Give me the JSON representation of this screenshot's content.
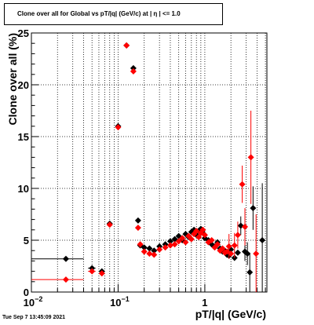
{
  "timestamp": "Tue Sep  7 13:45:09 2021",
  "chart_data": {
    "type": "scatter",
    "title": "Clone  over all for Global vs pT/|q| (GeV/c) at |  η  | <= 1.0",
    "xlabel": "pT/|q| (GeV/c)",
    "ylabel": "Clone  over all (%)",
    "xscale": "log",
    "xlim": [
      0.01,
      5.2
    ],
    "ylim": [
      0,
      25
    ],
    "grid": true,
    "legend": "none",
    "x_tick_labels": [
      {
        "value": 0.01,
        "base": "10",
        "exp": "−2"
      },
      {
        "value": 0.1,
        "base": "10",
        "exp": "−1"
      },
      {
        "value": 1,
        "base": "1",
        "exp": ""
      }
    ],
    "y_ticks": [
      0,
      5,
      10,
      15,
      20,
      25
    ],
    "series": [
      {
        "color": "#000000",
        "marker": "diamond",
        "points": [
          {
            "x": 0.025,
            "y": 3.2,
            "xlo": 0.01,
            "xhi": 0.04
          },
          {
            "x": 0.05,
            "y": 2.3,
            "xlo": 0.045,
            "xhi": 0.055
          },
          {
            "x": 0.065,
            "y": 2.0,
            "xlo": 0.06,
            "xhi": 0.07
          },
          {
            "x": 0.08,
            "y": 6.6
          },
          {
            "x": 0.1,
            "y": 16.0
          },
          {
            "x": 0.125,
            "y": 23.8
          },
          {
            "x": 0.15,
            "y": 21.6
          },
          {
            "x": 0.17,
            "y": 6.9
          },
          {
            "x": 0.18,
            "y": 4.5
          },
          {
            "x": 0.2,
            "y": 4.3
          },
          {
            "x": 0.23,
            "y": 4.2
          },
          {
            "x": 0.26,
            "y": 4.0
          },
          {
            "x": 0.3,
            "y": 4.4
          },
          {
            "x": 0.35,
            "y": 4.6
          },
          {
            "x": 0.4,
            "y": 4.9
          },
          {
            "x": 0.45,
            "y": 5.1
          },
          {
            "x": 0.5,
            "y": 5.4
          },
          {
            "x": 0.55,
            "y": 5.0
          },
          {
            "x": 0.6,
            "y": 5.6
          },
          {
            "x": 0.65,
            "y": 5.3
          },
          {
            "x": 0.7,
            "y": 5.8
          },
          {
            "x": 0.75,
            "y": 6.0
          },
          {
            "x": 0.8,
            "y": 5.5
          },
          {
            "x": 0.85,
            "y": 5.9
          },
          {
            "x": 0.9,
            "y": 6.1
          },
          {
            "x": 0.95,
            "y": 5.7
          },
          {
            "x": 1.0,
            "y": 5.2
          },
          {
            "x": 1.1,
            "y": 5.0
          },
          {
            "x": 1.2,
            "y": 4.6
          },
          {
            "x": 1.3,
            "y": 4.4
          },
          {
            "x": 1.4,
            "y": 4.8
          },
          {
            "x": 1.5,
            "y": 4.2
          },
          {
            "x": 1.6,
            "y": 3.9
          },
          {
            "x": 1.7,
            "y": 4.0
          },
          {
            "x": 1.8,
            "y": 3.6
          },
          {
            "x": 1.9,
            "y": 3.5
          },
          {
            "x": 2.0,
            "y": 4.1
          },
          {
            "x": 2.2,
            "y": 3.3
          },
          {
            "x": 2.4,
            "y": 3.8
          },
          {
            "x": 2.6,
            "y": 6.4,
            "ylo": 5.5,
            "yhi": 7.3
          },
          {
            "x": 2.9,
            "y": 3.9,
            "ylo": 3.0,
            "yhi": 4.8
          },
          {
            "x": 3.1,
            "y": 3.7,
            "ylo": 2.6,
            "yhi": 4.8
          },
          {
            "x": 3.3,
            "y": 1.9,
            "ylo": 0.0,
            "yhi": 3.8
          },
          {
            "x": 3.6,
            "y": 8.1,
            "ylo": 6.0,
            "yhi": 10.2
          },
          {
            "x": 4.6,
            "y": 5.0,
            "ylo": 0.0,
            "yhi": 10.5
          }
        ]
      },
      {
        "color": "#ff0000",
        "marker": "diamond",
        "points": [
          {
            "x": 0.025,
            "y": 1.2,
            "xlo": 0.01,
            "xhi": 0.04
          },
          {
            "x": 0.05,
            "y": 2.0,
            "xlo": 0.045,
            "xhi": 0.055
          },
          {
            "x": 0.065,
            "y": 1.8,
            "xlo": 0.06,
            "xhi": 0.07
          },
          {
            "x": 0.08,
            "y": 6.5
          },
          {
            "x": 0.1,
            "y": 15.9
          },
          {
            "x": 0.125,
            "y": 23.8
          },
          {
            "x": 0.15,
            "y": 21.3
          },
          {
            "x": 0.17,
            "y": 6.2
          },
          {
            "x": 0.18,
            "y": 4.6
          },
          {
            "x": 0.2,
            "y": 3.9
          },
          {
            "x": 0.23,
            "y": 3.7
          },
          {
            "x": 0.26,
            "y": 3.6
          },
          {
            "x": 0.3,
            "y": 4.1
          },
          {
            "x": 0.35,
            "y": 4.3
          },
          {
            "x": 0.4,
            "y": 4.5
          },
          {
            "x": 0.45,
            "y": 4.6
          },
          {
            "x": 0.5,
            "y": 4.9
          },
          {
            "x": 0.55,
            "y": 5.2
          },
          {
            "x": 0.6,
            "y": 4.8
          },
          {
            "x": 0.65,
            "y": 5.4
          },
          {
            "x": 0.7,
            "y": 5.1
          },
          {
            "x": 0.75,
            "y": 5.6
          },
          {
            "x": 0.8,
            "y": 5.9
          },
          {
            "x": 0.85,
            "y": 5.3
          },
          {
            "x": 0.9,
            "y": 5.7
          },
          {
            "x": 0.95,
            "y": 6.0
          },
          {
            "x": 1.0,
            "y": 5.5
          },
          {
            "x": 1.1,
            "y": 4.8
          },
          {
            "x": 1.2,
            "y": 5.0
          },
          {
            "x": 1.3,
            "y": 4.3
          },
          {
            "x": 1.4,
            "y": 4.6
          },
          {
            "x": 1.5,
            "y": 4.0
          },
          {
            "x": 1.6,
            "y": 4.2
          },
          {
            "x": 1.7,
            "y": 3.8
          },
          {
            "x": 1.8,
            "y": 3.9
          },
          {
            "x": 1.9,
            "y": 4.4,
            "ylo": 3.2,
            "yhi": 5.6
          },
          {
            "x": 2.0,
            "y": 3.7
          },
          {
            "x": 2.2,
            "y": 4.5,
            "ylo": 3.3,
            "yhi": 5.7
          },
          {
            "x": 2.4,
            "y": 5.5,
            "ylo": 4.2,
            "yhi": 6.8
          },
          {
            "x": 2.7,
            "y": 10.4,
            "ylo": 8.6,
            "yhi": 12.2
          },
          {
            "x": 2.9,
            "y": 6.3,
            "ylo": 4.5,
            "yhi": 8.1
          },
          {
            "x": 3.4,
            "y": 13.0,
            "ylo": 8.5,
            "yhi": 17.5
          },
          {
            "x": 3.9,
            "y": 3.7,
            "ylo": 0.0,
            "yhi": 7.5
          }
        ]
      }
    ]
  }
}
